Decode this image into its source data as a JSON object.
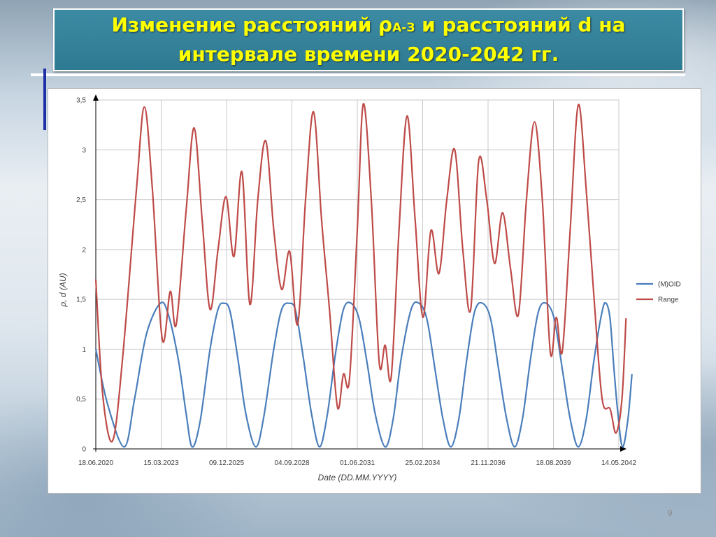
{
  "slide": {
    "title_part1": "Изменение расстояний ρ",
    "title_sub": "А-З",
    "title_part2": " и расстояний d  на",
    "title_line2": "интервале времени 2020-2042 гг.",
    "page_number": "9"
  },
  "colors": {
    "title_text": "#ffff00",
    "title_bg": "#2f7a93",
    "moid_series": "#4a7ebb",
    "range_series": "#be4b48"
  },
  "chart_data": {
    "type": "line",
    "title": "",
    "xlabel": "Date (DD.MM.YYYY)",
    "ylabel": "ρ, d (AU)",
    "x_tick_labels": [
      "18.06.2020",
      "15.03.2023",
      "09.12.2025",
      "04.09.2028",
      "01.06.2031",
      "25.02.2034",
      "21.11.2036",
      "18.08.2039",
      "14.05.2042"
    ],
    "xlim": [
      "18.06.2020",
      "14.05.2042"
    ],
    "y_tick_labels": [
      "0",
      "0,5",
      "1",
      "1,5",
      "2",
      "2,5",
      "3",
      "3,5"
    ],
    "ylim": [
      0,
      3.5
    ],
    "grid": true,
    "legend_position": "right",
    "series": [
      {
        "name": "(M)OID",
        "color": "#4a7ebb",
        "points": [
          [
            "18.06.2020",
            1.0
          ],
          [
            "15.12.2020",
            0.45
          ],
          [
            "28.08.2021",
            0.02
          ],
          [
            "01.02.2022",
            0.5
          ],
          [
            "01.08.2022",
            1.15
          ],
          [
            "01.03.2023",
            1.46
          ],
          [
            "01.07.2023",
            1.35
          ],
          [
            "01.12.2023",
            0.9
          ],
          [
            "01.04.2024",
            0.35
          ],
          [
            "01.07.2024",
            0.02
          ],
          [
            "01.11.2024",
            0.28
          ],
          [
            "01.04.2025",
            1.0
          ],
          [
            "01.08.2025",
            1.4
          ],
          [
            "01.11.2025",
            1.46
          ],
          [
            "01.02.2026",
            1.38
          ],
          [
            "01.06.2026",
            0.9
          ],
          [
            "01.10.2026",
            0.35
          ],
          [
            "01.03.2027",
            0.02
          ],
          [
            "01.07.2027",
            0.32
          ],
          [
            "01.12.2027",
            1.0
          ],
          [
            "01.04.2028",
            1.4
          ],
          [
            "01.08.2028",
            1.46
          ],
          [
            "01.11.2028",
            1.38
          ],
          [
            "01.03.2029",
            0.9
          ],
          [
            "01.07.2029",
            0.35
          ],
          [
            "01.11.2029",
            0.02
          ],
          [
            "01.03.2030",
            0.35
          ],
          [
            "01.07.2030",
            0.95
          ],
          [
            "01.11.2030",
            1.4
          ],
          [
            "01.03.2031",
            1.46
          ],
          [
            "01.07.2031",
            1.3
          ],
          [
            "01.11.2031",
            0.85
          ],
          [
            "01.03.2032",
            0.35
          ],
          [
            "01.08.2032",
            0.02
          ],
          [
            "01.12.2032",
            0.3
          ],
          [
            "01.04.2033",
            0.9
          ],
          [
            "01.09.2033",
            1.4
          ],
          [
            "01.01.2034",
            1.46
          ],
          [
            "01.05.2034",
            1.3
          ],
          [
            "01.09.2034",
            0.8
          ],
          [
            "01.01.2035",
            0.3
          ],
          [
            "01.05.2035",
            0.02
          ],
          [
            "01.09.2035",
            0.3
          ],
          [
            "01.01.2036",
            0.9
          ],
          [
            "01.05.2036",
            1.38
          ],
          [
            "01.09.2036",
            1.46
          ],
          [
            "01.01.2037",
            1.3
          ],
          [
            "01.05.2037",
            0.8
          ],
          [
            "01.09.2037",
            0.3
          ],
          [
            "01.01.2038",
            0.02
          ],
          [
            "01.05.2038",
            0.3
          ],
          [
            "01.09.2038",
            0.9
          ],
          [
            "01.01.2039",
            1.38
          ],
          [
            "01.05.2039",
            1.46
          ],
          [
            "01.09.2039",
            1.3
          ],
          [
            "01.01.2040",
            0.8
          ],
          [
            "01.05.2040",
            0.3
          ],
          [
            "01.09.2040",
            0.02
          ],
          [
            "01.01.2041",
            0.3
          ],
          [
            "01.05.2041",
            0.9
          ],
          [
            "01.09.2041",
            1.38
          ],
          [
            "01.11.2041",
            1.46
          ],
          [
            "01.01.2042",
            1.3
          ],
          [
            "01.03.2042",
            0.8
          ],
          [
            "01.05.2042",
            0.35
          ],
          [
            "10.07.2042",
            0.02
          ],
          [
            "01.10.2042",
            0.3
          ],
          [
            "01.12.2042",
            0.75
          ]
        ]
      },
      {
        "name": "Range",
        "color": "#be4b48",
        "points": [
          [
            "18.06.2020",
            1.7
          ],
          [
            "01.10.2020",
            0.55
          ],
          [
            "01.03.2021",
            0.08
          ],
          [
            "01.08.2021",
            0.9
          ],
          [
            "01.03.2022",
            2.6
          ],
          [
            "01.07.2022",
            3.43
          ],
          [
            "01.11.2022",
            2.6
          ],
          [
            "01.04.2023",
            1.1
          ],
          [
            "01.08.2023",
            1.58
          ],
          [
            "01.11.2023",
            1.25
          ],
          [
            "01.04.2024",
            2.4
          ],
          [
            "01.08.2024",
            3.22
          ],
          [
            "01.12.2024",
            2.3
          ],
          [
            "01.04.2025",
            1.4
          ],
          [
            "01.08.2025",
            2.0
          ],
          [
            "01.12.2025",
            2.53
          ],
          [
            "01.04.2026",
            1.93
          ],
          [
            "01.08.2026",
            2.78
          ],
          [
            "01.12.2026",
            1.45
          ],
          [
            "01.04.2027",
            2.5
          ],
          [
            "01.08.2027",
            3.09
          ],
          [
            "01.12.2027",
            2.2
          ],
          [
            "01.04.2028",
            1.6
          ],
          [
            "01.08.2028",
            1.98
          ],
          [
            "01.12.2028",
            1.25
          ],
          [
            "01.04.2029",
            2.5
          ],
          [
            "01.08.2029",
            3.38
          ],
          [
            "01.12.2029",
            2.3
          ],
          [
            "01.04.2030",
            1.4
          ],
          [
            "01.08.2030",
            0.42
          ],
          [
            "01.11.2030",
            0.75
          ],
          [
            "01.02.2031",
            0.7
          ],
          [
            "01.06.2031",
            2.2
          ],
          [
            "01.09.2031",
            3.46
          ],
          [
            "01.01.2032",
            2.5
          ],
          [
            "01.05.2032",
            0.87
          ],
          [
            "01.08.2032",
            1.04
          ],
          [
            "01.11.2032",
            0.72
          ],
          [
            "01.03.2033",
            2.2
          ],
          [
            "01.07.2033",
            3.34
          ],
          [
            "01.11.2033",
            2.3
          ],
          [
            "01.03.2034",
            1.32
          ],
          [
            "01.07.2034",
            2.19
          ],
          [
            "01.11.2034",
            1.76
          ],
          [
            "01.03.2035",
            2.5
          ],
          [
            "01.07.2035",
            3.0
          ],
          [
            "01.11.2035",
            2.0
          ],
          [
            "01.03.2036",
            1.4
          ],
          [
            "01.07.2036",
            2.89
          ],
          [
            "01.11.2036",
            2.5
          ],
          [
            "01.03.2037",
            1.86
          ],
          [
            "01.07.2037",
            2.37
          ],
          [
            "01.11.2037",
            1.8
          ],
          [
            "01.03.2038",
            1.35
          ],
          [
            "01.07.2038",
            2.5
          ],
          [
            "01.11.2038",
            3.28
          ],
          [
            "01.03.2039",
            2.5
          ],
          [
            "01.07.2039",
            0.97
          ],
          [
            "01.10.2039",
            1.32
          ],
          [
            "01.01.2040",
            0.98
          ],
          [
            "01.05.2040",
            2.2
          ],
          [
            "01.09.2040",
            3.45
          ],
          [
            "01.01.2041",
            2.6
          ],
          [
            "01.05.2041",
            1.5
          ],
          [
            "01.09.2041",
            0.5
          ],
          [
            "01.01.2042",
            0.4
          ],
          [
            "01.04.2042",
            0.16
          ],
          [
            "01.07.2042",
            0.5
          ],
          [
            "01.09.2042",
            1.31
          ]
        ]
      }
    ]
  }
}
